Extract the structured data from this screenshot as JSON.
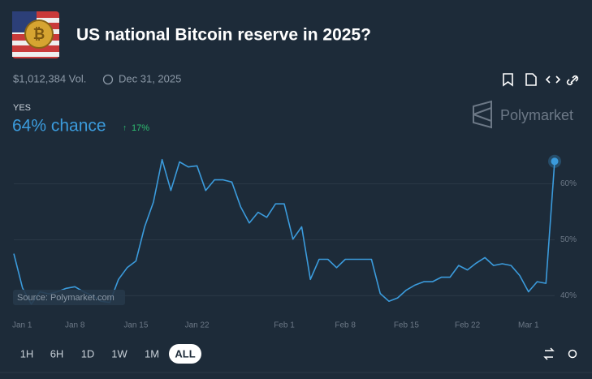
{
  "header": {
    "title": "US national Bitcoin reserve in 2025?",
    "volume": "$1,012,384 Vol.",
    "end_date": "Dec 31, 2025",
    "outcome": "YES",
    "chance": "64% chance",
    "change": "17%",
    "brand": "Polymarket"
  },
  "chart_data": {
    "type": "line",
    "source": "Source: Polymarket.com",
    "x": [
      "Jan 1",
      "Jan 2",
      "Jan 3",
      "Jan 4",
      "Jan 5",
      "Jan 6",
      "Jan 7",
      "Jan 8",
      "Jan 9",
      "Jan 10",
      "Jan 11",
      "Jan 12",
      "Jan 13",
      "Jan 14",
      "Jan 15",
      "Jan 16",
      "Jan 17",
      "Jan 18",
      "Jan 19",
      "Jan 20",
      "Jan 21",
      "Jan 22",
      "Jan 23",
      "Jan 24",
      "Jan 25",
      "Jan 26",
      "Jan 27",
      "Jan 28",
      "Jan 29",
      "Jan 30",
      "Jan 31",
      "Feb 1",
      "Feb 2",
      "Feb 3",
      "Feb 4",
      "Feb 5",
      "Feb 6",
      "Feb 7",
      "Feb 8",
      "Feb 9",
      "Feb 10",
      "Feb 11",
      "Feb 12",
      "Feb 13",
      "Feb 14",
      "Feb 15",
      "Feb 16",
      "Feb 17",
      "Feb 18",
      "Feb 19",
      "Feb 20",
      "Feb 21",
      "Feb 22",
      "Feb 23",
      "Feb 24",
      "Feb 25",
      "Feb 26",
      "Feb 27",
      "Feb 28",
      "Mar 1",
      "Mar 2",
      "Mar 3",
      "Mar 4"
    ],
    "series": [
      {
        "name": "YES",
        "color": "#3b9bdc",
        "values": [
          47.5,
          41.4,
          38.5,
          40.7,
          40.3,
          40.7,
          41.3,
          41.6,
          40.7,
          40,
          39,
          38.8,
          42.9,
          45,
          46.2,
          52.3,
          56.7,
          64.3,
          58.8,
          63.9,
          63,
          63.2,
          58.8,
          60.7,
          60.7,
          60.3,
          55.9,
          53,
          54.9,
          54,
          56.4,
          56.4,
          50.1,
          52.3,
          42.9,
          46.5,
          46.5,
          45,
          46.5,
          46.5,
          46.5,
          46.5,
          40.4,
          39,
          39.6,
          41,
          41.9,
          42.5,
          42.5,
          43.3,
          43.3,
          45.4,
          44.6,
          45.8,
          46.8,
          45.4,
          45.7,
          45.4,
          43.6,
          40.7,
          42.5,
          42.2,
          64
        ]
      }
    ],
    "xticks": [
      "Jan 1",
      "Jan 8",
      "Jan 15",
      "Jan 22",
      "Feb 1",
      "Feb 8",
      "Feb 15",
      "Feb 22",
      "Mar 1"
    ],
    "ylim": [
      37,
      66
    ],
    "yticks": [
      {
        "value": 40,
        "label": "40%"
      },
      {
        "value": 50,
        "label": "50%"
      },
      {
        "value": 60,
        "label": "60%"
      }
    ],
    "grid": true
  },
  "range_buttons": [
    "1H",
    "6H",
    "1D",
    "1W",
    "1M",
    "ALL"
  ]
}
